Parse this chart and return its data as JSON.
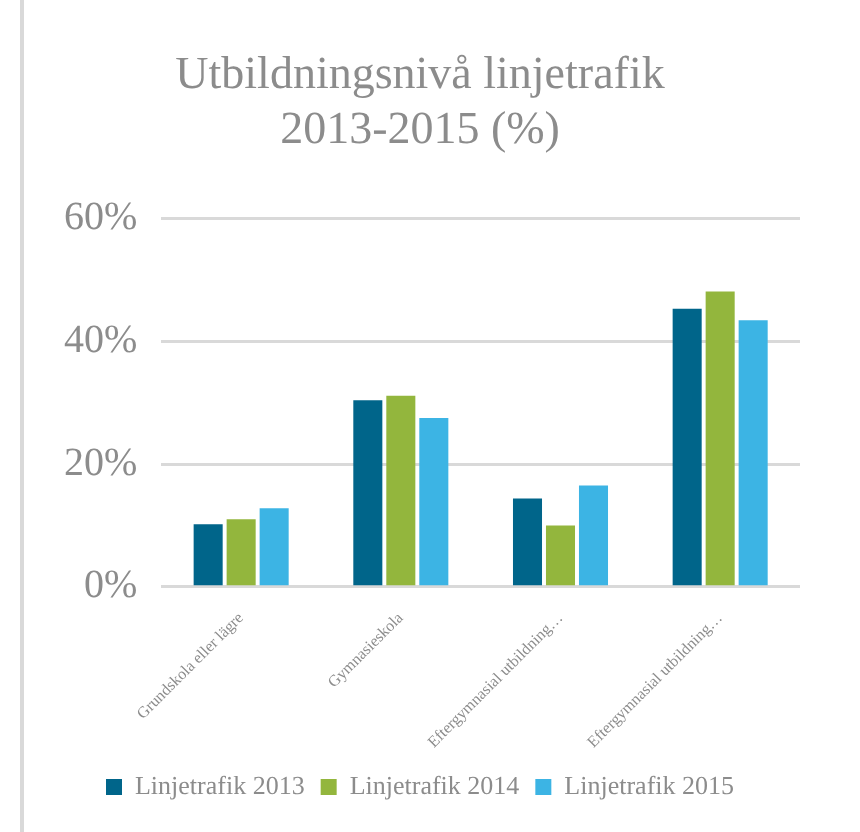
{
  "chart_data": {
    "type": "bar",
    "title": "Utbildningsnivå linjetrafik 2013-2015 (%)",
    "categories": [
      "Grundskola eller lägre",
      "Gymnasieskola",
      "Eftergymnasial utbildning…",
      "Eftergymnasial utbildning…"
    ],
    "series": [
      {
        "name": "Linjetrafik 2013",
        "color": "#00658a",
        "values": [
          10.2,
          30.4,
          14.4,
          45.3
        ]
      },
      {
        "name": "Linjetrafik 2014",
        "color": "#93b63d",
        "values": [
          11,
          31.1,
          10,
          48.1
        ]
      },
      {
        "name": "Linjetrafik 2015",
        "color": "#3cb4e4",
        "values": [
          12.8,
          27.5,
          16.5,
          43.4
        ]
      }
    ],
    "ylim": [
      0,
      60
    ],
    "yticks": [
      {
        "value": 0,
        "label": "0%"
      },
      {
        "value": 20,
        "label": "20%"
      },
      {
        "value": 40,
        "label": "40%"
      },
      {
        "value": 60,
        "label": "60%"
      }
    ],
    "grid": "y",
    "legend": "bottom"
  }
}
